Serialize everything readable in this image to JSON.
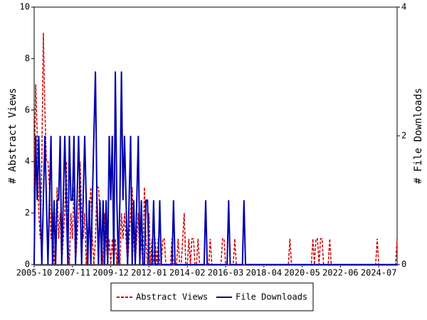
{
  "chart_data": {
    "type": "line",
    "y_label": "# Abstract Views",
    "y2_label": "# File Downloads",
    "categories": [
      "2005-10",
      null,
      null,
      null,
      null,
      null,
      null,
      null,
      null,
      null,
      null,
      null,
      null,
      null,
      null,
      null,
      null,
      null,
      null,
      null,
      null,
      null,
      null,
      null,
      null,
      "2007-11",
      null,
      null,
      null,
      null,
      null,
      null,
      null,
      null,
      null,
      null,
      null,
      null,
      null,
      null,
      null,
      null,
      null,
      null,
      null,
      null,
      null,
      null,
      null,
      null,
      "2009-12",
      null,
      null,
      null,
      null,
      null,
      null,
      null,
      null,
      null,
      null,
      null,
      null,
      null,
      null,
      null,
      null,
      null,
      null,
      null,
      null,
      null,
      null,
      null,
      null,
      "2012-01",
      null,
      null,
      null,
      null,
      null,
      null,
      null,
      null,
      null,
      null,
      null,
      null,
      null,
      null,
      null,
      null,
      null,
      null,
      null,
      null,
      null,
      null,
      null,
      null,
      "2014-02",
      null,
      null,
      null,
      null,
      null,
      null,
      null,
      null,
      null,
      null,
      null,
      null,
      null,
      null,
      null,
      null,
      null,
      null,
      null,
      null,
      null,
      null,
      null,
      null,
      "2016-03",
      null,
      null,
      null,
      null,
      null,
      null,
      null,
      null,
      null,
      null,
      null,
      null,
      null,
      null,
      null,
      null,
      null,
      null,
      null,
      null,
      null,
      null,
      null,
      null,
      "2018-04",
      null,
      null,
      null,
      null,
      null,
      null,
      null,
      null,
      null,
      null,
      null,
      null,
      null,
      null,
      null,
      null,
      null,
      null,
      null,
      null,
      null,
      null,
      null,
      null,
      "2020-05",
      null,
      null,
      null,
      null,
      null,
      null,
      null,
      null,
      null,
      null,
      null,
      null,
      null,
      null,
      null,
      null,
      null,
      null,
      null,
      null,
      null,
      null,
      null,
      null,
      "2022-06",
      null,
      null,
      null,
      null,
      null,
      null,
      null,
      null,
      null,
      null,
      null,
      null,
      null,
      null,
      null,
      null,
      null,
      null,
      null,
      null,
      null,
      null,
      null,
      null,
      "2024-07",
      null,
      null,
      null,
      null,
      null,
      null,
      null,
      null,
      null,
      null,
      null,
      null
    ],
    "series": [
      {
        "name": "Abstract Views",
        "color": "#cc0000",
        "dash": true,
        "values": [
          3,
          7,
          5,
          2,
          1,
          4,
          9,
          6,
          4,
          4,
          3,
          1,
          2,
          0,
          1,
          3,
          1,
          2,
          0,
          1,
          2,
          4,
          1,
          0,
          2,
          1,
          3,
          0,
          1,
          2,
          4,
          2,
          1,
          2,
          0,
          1,
          2,
          3,
          1,
          0,
          1,
          3,
          3,
          2,
          1,
          0,
          2,
          1,
          0,
          1,
          0,
          1,
          0,
          1,
          0,
          1,
          0,
          2,
          1,
          2,
          1,
          0,
          1,
          2,
          3,
          1,
          0,
          1,
          2,
          0,
          1,
          0,
          3,
          1,
          0,
          2,
          0,
          1,
          0,
          1,
          0,
          1,
          0,
          0,
          1,
          1,
          0,
          0,
          0,
          0,
          1,
          0,
          0,
          0,
          1,
          0,
          0,
          1,
          2,
          0,
          0,
          1,
          0,
          1,
          1,
          0,
          0,
          1,
          0,
          0,
          0,
          0,
          0,
          0,
          0,
          1,
          0,
          0,
          0,
          0,
          0,
          0,
          0,
          1,
          1,
          0,
          0,
          0,
          0,
          0,
          0,
          1,
          0,
          0,
          0,
          0,
          0,
          0,
          0,
          0,
          0,
          0,
          0,
          0,
          0,
          0,
          0,
          0,
          0,
          0,
          0,
          0,
          0,
          0,
          0,
          0,
          0,
          0,
          0,
          0,
          0,
          0,
          0,
          0,
          0,
          0,
          0,
          1,
          0,
          0,
          0,
          0,
          0,
          0,
          0,
          0,
          0,
          0,
          0,
          0,
          0,
          0,
          1,
          0,
          1,
          1,
          0,
          1,
          1,
          0,
          0,
          0,
          0,
          1,
          0,
          0,
          0,
          0,
          0,
          0,
          0,
          0,
          0,
          0,
          0,
          0,
          0,
          0,
          0,
          0,
          0,
          0,
          0,
          0,
          0,
          0,
          0,
          0,
          0,
          0,
          0,
          0,
          0,
          0,
          1,
          0,
          0,
          0,
          0,
          0,
          0,
          0,
          0,
          0,
          0,
          0,
          0,
          1
        ]
      },
      {
        "name": "File Downloads",
        "color": "#0000aa",
        "axis": "y2",
        "values": [
          0,
          2,
          1,
          2,
          1,
          0,
          1,
          2,
          1,
          0,
          1,
          2,
          0,
          1,
          0,
          1,
          1,
          2,
          0,
          1,
          2,
          1,
          0,
          2,
          1,
          1,
          2,
          0,
          1,
          2,
          1,
          0,
          1,
          2,
          1,
          0,
          1,
          0,
          1,
          2,
          3,
          1,
          0,
          1,
          0,
          1,
          0,
          1,
          0,
          2,
          1,
          2,
          0,
          3,
          1,
          0,
          1,
          3,
          1,
          2,
          1,
          0,
          1,
          2,
          0,
          1,
          0,
          1,
          2,
          0,
          1,
          0,
          0,
          1,
          1,
          0,
          0,
          0,
          1,
          0,
          0,
          0,
          1,
          0,
          0,
          0,
          0,
          0,
          0,
          0,
          0,
          1,
          0,
          0,
          0,
          0,
          0,
          0,
          0,
          0,
          0,
          0,
          0,
          0,
          0,
          0,
          0,
          0,
          0,
          0,
          0,
          0,
          1,
          0,
          0,
          0,
          0,
          0,
          0,
          0,
          0,
          0,
          0,
          0,
          0,
          0,
          0,
          1,
          0,
          0,
          0,
          0,
          0,
          0,
          0,
          0,
          0,
          1,
          0,
          0,
          0,
          0,
          0,
          0,
          0,
          0,
          0,
          0,
          0,
          0,
          0,
          0,
          0,
          0,
          0,
          0,
          0,
          0,
          0,
          0,
          0,
          0,
          0,
          0,
          0,
          0,
          0,
          0,
          0,
          0,
          0,
          0,
          0,
          0,
          0,
          0,
          0,
          0,
          0,
          0,
          0,
          0,
          0,
          0,
          0,
          0,
          0,
          0,
          0,
          0,
          0,
          0,
          0,
          0,
          0,
          0,
          0,
          0,
          0,
          0,
          0,
          0,
          0,
          0,
          0,
          0,
          0,
          0,
          0,
          0,
          0,
          0,
          0,
          0,
          0,
          0,
          0,
          0,
          0,
          0,
          0,
          0,
          0,
          0,
          0,
          0,
          0,
          0,
          0,
          0,
          0,
          0,
          0,
          0,
          0,
          0,
          0,
          0
        ]
      }
    ],
    "ylim": [
      0,
      10
    ],
    "yticks": [
      0,
      2,
      4,
      6,
      8,
      10
    ],
    "y2lim": [
      0,
      4
    ],
    "y2ticks": [
      0,
      2,
      4
    ],
    "legend": "bottom"
  }
}
